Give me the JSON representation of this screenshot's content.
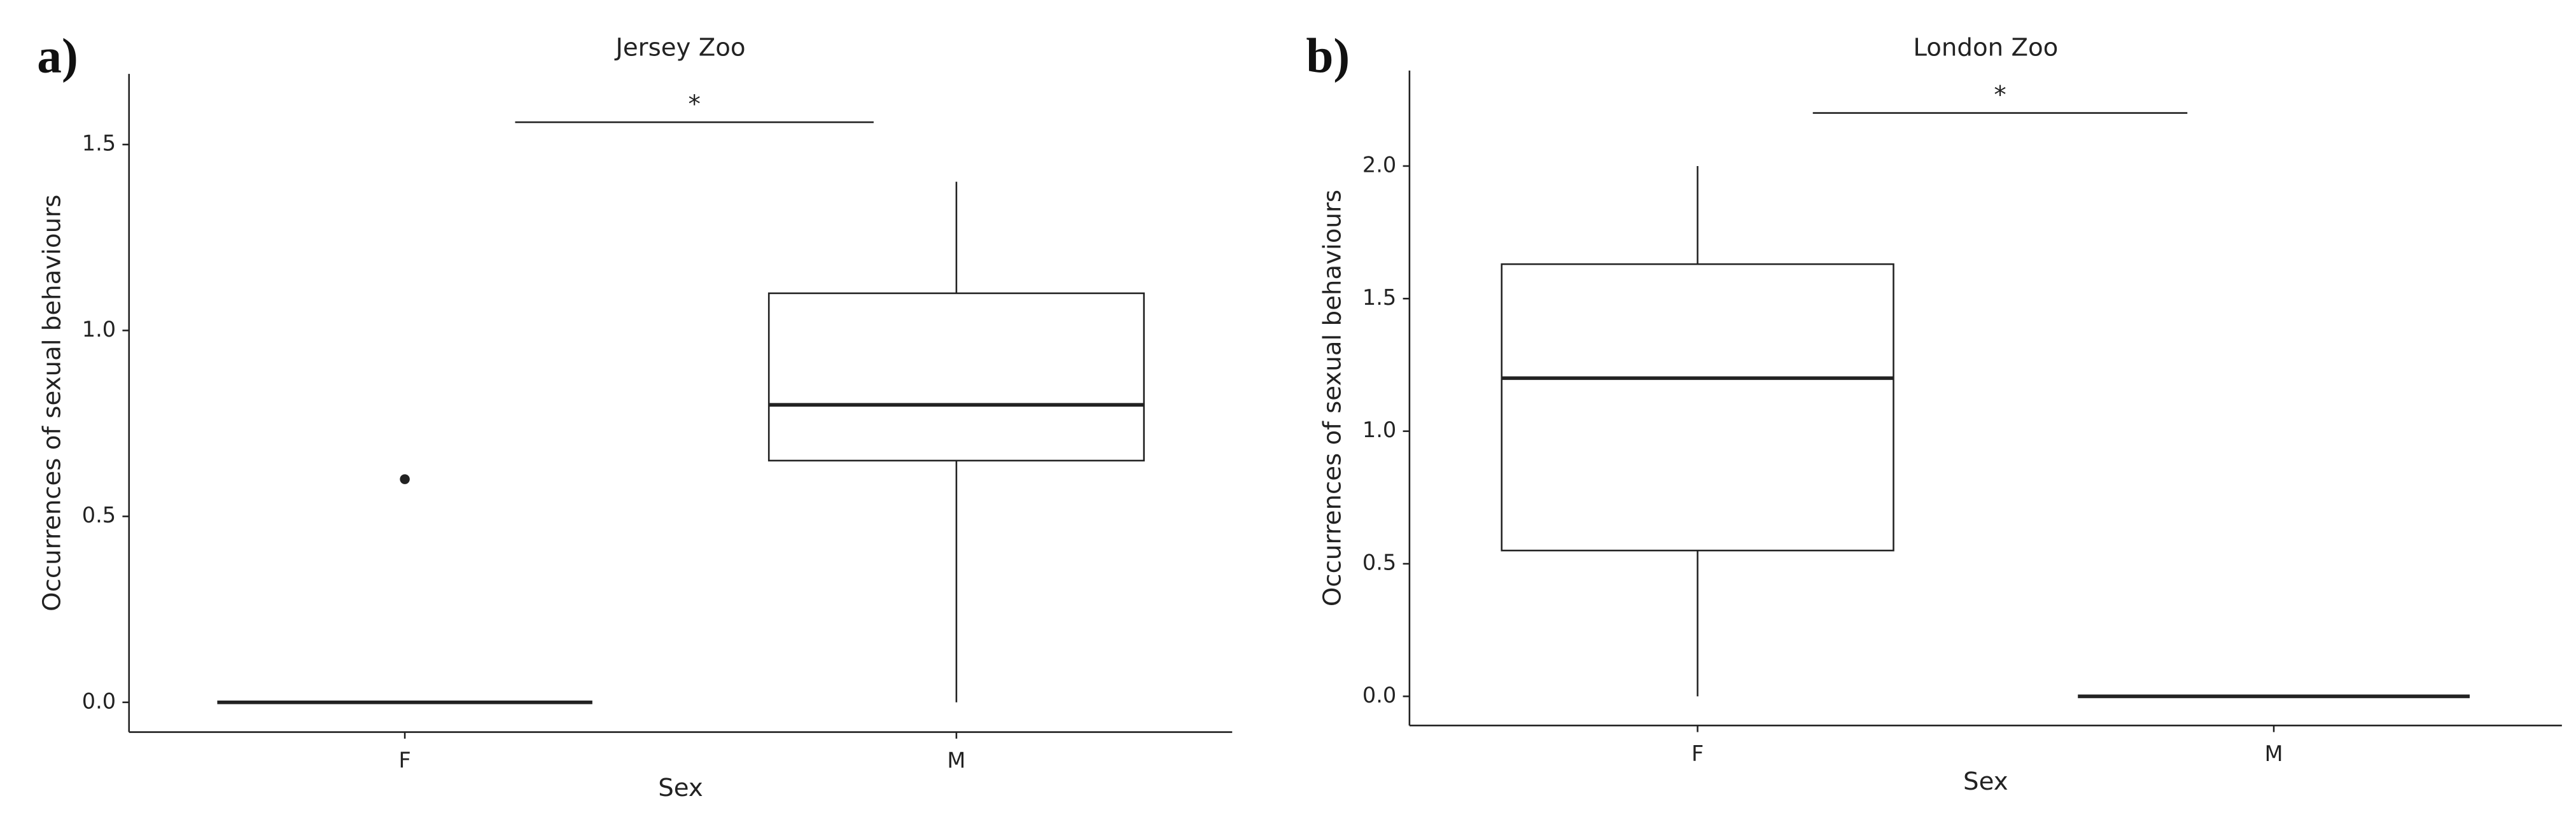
{
  "chart_data": [
    {
      "type": "box",
      "panel": "a)",
      "title": "Jersey Zoo",
      "x_label": "Sex",
      "y_label": "Occurrences of sexual behaviours",
      "categories": [
        "F",
        "M"
      ],
      "min": [
        0,
        0
      ],
      "q1": [
        0,
        0.65
      ],
      "median": [
        0,
        0.8
      ],
      "q3": [
        0,
        1.1
      ],
      "max": [
        0,
        1.4
      ],
      "outliers": [
        [
          0.6
        ],
        []
      ],
      "significance": {
        "y": 1.56,
        "label": "*"
      },
      "ylim": [
        -0.08,
        1.69
      ],
      "yticks": [
        {
          "value": 0,
          "label": "0.0"
        },
        {
          "value": 0.5,
          "label": "0.5"
        },
        {
          "value": 1,
          "label": "1.0"
        },
        {
          "value": 1.5,
          "label": "1.5"
        }
      ]
    },
    {
      "type": "box",
      "panel": "b)",
      "title": "London Zoo",
      "x_label": "Sex",
      "y_label": "Occurrences of sexual behaviours",
      "categories": [
        "F",
        "M"
      ],
      "min": [
        0,
        0
      ],
      "q1": [
        0.55,
        0
      ],
      "median": [
        1.2,
        0
      ],
      "q3": [
        1.63,
        0
      ],
      "max": [
        2.0,
        0
      ],
      "outliers": [
        [],
        []
      ],
      "significance": {
        "y": 2.2,
        "label": "*"
      },
      "ylim": [
        -0.11,
        2.36
      ],
      "yticks": [
        {
          "value": 0,
          "label": "0.0"
        },
        {
          "value": 0.5,
          "label": "0.5"
        },
        {
          "value": 1,
          "label": "1.0"
        },
        {
          "value": 1.5,
          "label": "1.5"
        },
        {
          "value": 2,
          "label": "2.0"
        }
      ]
    }
  ]
}
